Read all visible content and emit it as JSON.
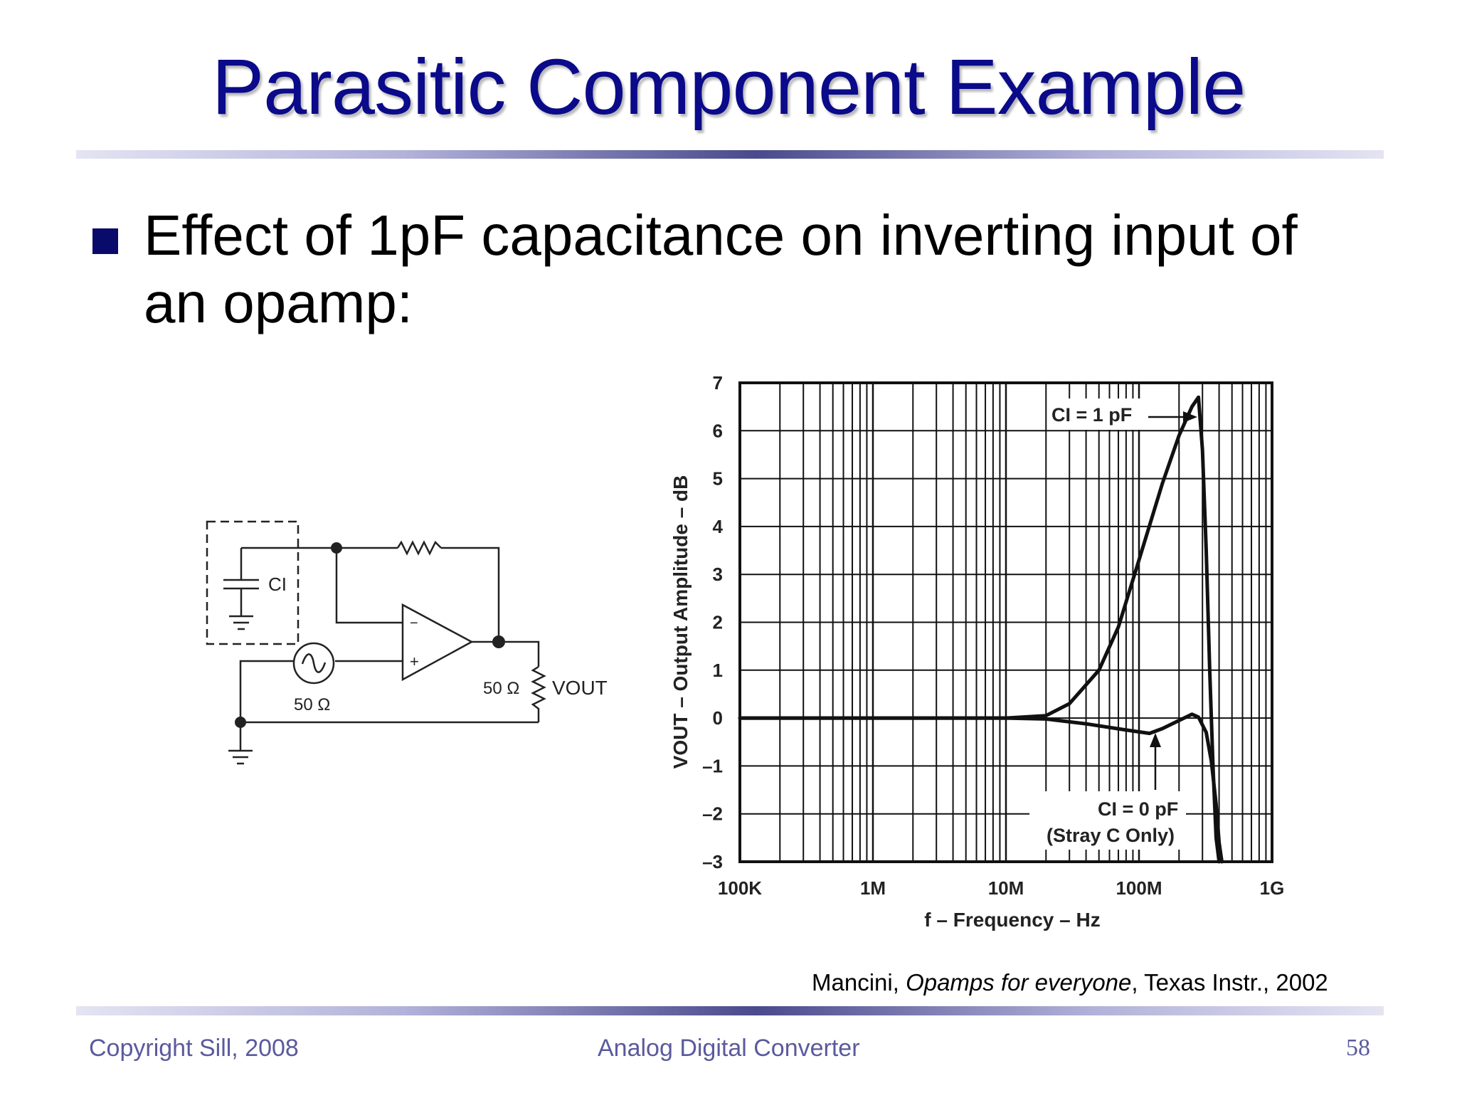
{
  "slide": {
    "title": "Parasitic Component Example",
    "bullet": "Effect of 1pF capacitance on inverting input of an opamp:",
    "citation": {
      "author": "Mancini, ",
      "work": "Opamps for everyone",
      "rest": ", Texas Instr., 2002"
    },
    "footer": {
      "left": "Copyright Sill, 2008",
      "center": "Analog Digital Converter",
      "page": "58"
    },
    "colors": {
      "title": "#0a0a8a",
      "footer": "#5a5a9e",
      "bullet": "#0a0a6a"
    }
  },
  "circuit": {
    "capacitor_label": "CI",
    "source_resistance": "50 Ω",
    "load_resistance": "50 Ω",
    "output_label": "VOUT",
    "minus_sign": "−",
    "plus_sign": "+"
  },
  "chart_data": {
    "type": "line",
    "xscale": "log",
    "xlim": [
      100000,
      1000000000
    ],
    "ylim": [
      -3,
      7
    ],
    "x_tick_labels": [
      "100K",
      "1M",
      "10M",
      "100M",
      "1G"
    ],
    "y_tick_labels": [
      "7",
      "6",
      "5",
      "4",
      "3",
      "2",
      "1",
      "0",
      "–1",
      "–2",
      "–3"
    ],
    "xlabel": "f – Frequency – Hz",
    "ylabel": "VOUT – Output Amplitude – dB",
    "grid": true,
    "annotations": [
      {
        "text": "CI = 1 pF",
        "points_to_series": 0
      },
      {
        "text": "CI = 0 pF",
        "text2": "(Stray C Only)",
        "points_to_series": 1
      }
    ],
    "series": [
      {
        "name": "CI = 1 pF",
        "x": [
          100000,
          1000000,
          10000000,
          20000000,
          30000000,
          50000000,
          70000000,
          100000000,
          150000000,
          200000000,
          250000000,
          280000000,
          300000000,
          320000000,
          340000000,
          360000000,
          380000000,
          400000000
        ],
        "y": [
          0,
          0,
          0,
          0.05,
          0.3,
          1.0,
          1.9,
          3.3,
          4.9,
          5.9,
          6.5,
          6.7,
          5.6,
          3.5,
          1.0,
          -1.0,
          -2.5,
          -3
        ]
      },
      {
        "name": "CI = 0 pF (Stray C Only)",
        "x": [
          100000,
          1000000,
          10000000,
          20000000,
          40000000,
          80000000,
          120000000,
          150000000,
          200000000,
          250000000,
          280000000,
          320000000,
          350000000,
          380000000,
          400000000,
          420000000
        ],
        "y": [
          0,
          0,
          0,
          -0.02,
          -0.12,
          -0.25,
          -0.32,
          -0.22,
          -0.05,
          0.08,
          0.02,
          -0.3,
          -0.9,
          -1.8,
          -2.6,
          -3
        ]
      }
    ]
  }
}
